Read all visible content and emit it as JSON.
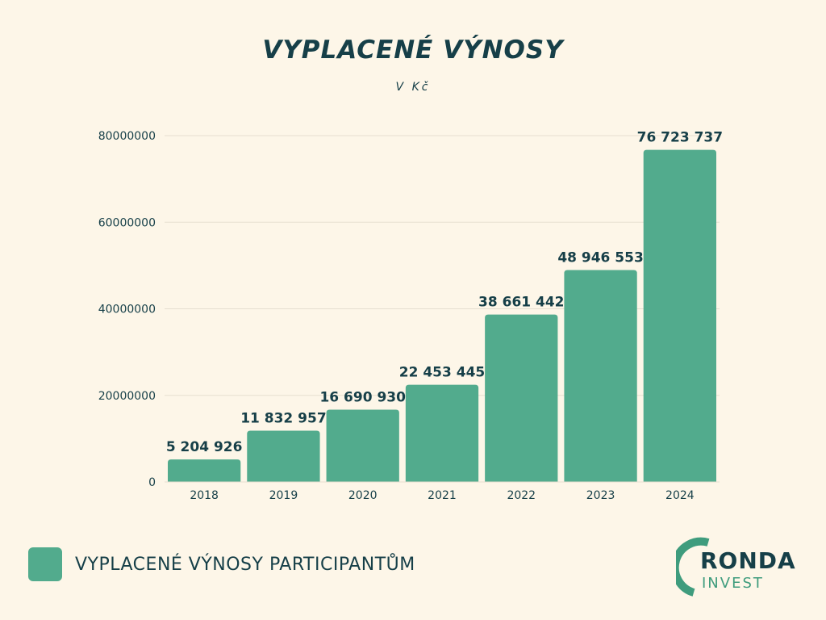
{
  "chart_data": {
    "type": "bar",
    "title": "VYPLACENÉ VÝNOSY",
    "subtitle": "V Kč",
    "categories": [
      "2018",
      "2019",
      "2020",
      "2021",
      "2022",
      "2023",
      "2024"
    ],
    "series": [
      {
        "name": "VYPLACENÉ VÝNOSY PARTICIPANTŮM",
        "values": [
          5204926,
          11832957,
          16690930,
          22453445,
          38661442,
          48946553,
          76723737
        ],
        "labels": [
          "5 204 926",
          "11 832 957",
          "16 690 930",
          "22 453 445",
          "38 661 442",
          "48 946 553",
          "76 723 737"
        ]
      }
    ],
    "y_ticks": [
      0,
      20000000,
      40000000,
      60000000,
      80000000
    ],
    "y_tick_labels": [
      "0",
      "20000000",
      "40000000",
      "60000000",
      "80000000"
    ],
    "ylim": [
      0,
      80000000
    ],
    "grid": true,
    "legend_position": "bottom-left",
    "colors": {
      "bar": "#52ab8d",
      "text": "#163f48",
      "grid": "#e6dfd0",
      "background": "#fdf6e8"
    }
  },
  "legend": {
    "label": "VYPLACENÉ VÝNOSY PARTICIPANTŮM"
  },
  "logo": {
    "line1": "RONDA",
    "line2": "INVEST",
    "color_dark": "#163f48",
    "color_accent": "#3f9c7d"
  }
}
